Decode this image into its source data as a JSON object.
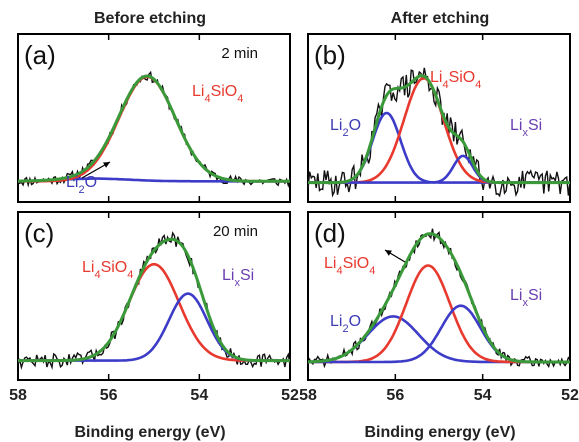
{
  "figure": {
    "col_titles": [
      "Before etching",
      "After etching"
    ]
  },
  "chart_data": [
    {
      "type": "line",
      "panel_label": "(a)",
      "annotation": "2 min",
      "xlabel": "Binding energy (eV)",
      "xlim": [
        58,
        52
      ],
      "x_ticks": [
        58,
        56,
        54,
        52
      ],
      "ylim": [
        0,
        1
      ],
      "peaks": [
        {
          "name": "Li2O",
          "label_main": "Li",
          "label_sub": "2",
          "label_rest": "O",
          "center": 56.3,
          "height": 0.02,
          "sigma": 0.75,
          "color": "#3c3cc8",
          "label_color": "#3c3cb4"
        },
        {
          "name": "Li4SiO4",
          "label_main": "Li",
          "label_sub": "4",
          "label_rest": "SiO",
          "label_sub2": "4",
          "center": 55.15,
          "height": 0.78,
          "sigma": 0.62,
          "color": "#e8392f",
          "label_color": "#e8392f"
        }
      ],
      "baseline": 0.05,
      "envelope_color": "#3a9a3a",
      "raw_color": "#111111",
      "noise": 0.035,
      "seed": 11
    },
    {
      "type": "line",
      "panel_label": "(b)",
      "annotation": "",
      "xlabel": "Binding energy (eV)",
      "xlim": [
        58,
        52
      ],
      "x_ticks": [
        58,
        56,
        54,
        52
      ],
      "ylim": [
        0,
        1
      ],
      "peaks": [
        {
          "name": "Li2O",
          "label_main": "Li",
          "label_sub": "2",
          "label_rest": "O",
          "center": 56.2,
          "height": 0.52,
          "sigma": 0.32,
          "color": "#3c3cc8",
          "label_color": "#3c3cb4"
        },
        {
          "name": "Li4SiO4",
          "label_main": "Li",
          "label_sub": "4",
          "label_rest": "SiO",
          "label_sub2": "4",
          "center": 55.35,
          "height": 0.78,
          "sigma": 0.45,
          "color": "#e8392f",
          "label_color": "#e8392f"
        },
        {
          "name": "LixSi",
          "label_main": "Li",
          "label_sub": "x",
          "label_rest": "Si",
          "center": 54.45,
          "height": 0.2,
          "sigma": 0.22,
          "color": "#3c3cc8",
          "label_color": "#6a3fb0"
        }
      ],
      "baseline": 0.04,
      "envelope_color": "#3a9a3a",
      "raw_color": "#111111",
      "noise": 0.1,
      "seed": 29
    },
    {
      "type": "line",
      "panel_label": "(c)",
      "annotation": "20 min",
      "xlabel": "Binding energy (eV)",
      "xlim": [
        58,
        52
      ],
      "x_ticks": [
        58,
        56,
        54,
        52
      ],
      "ylim": [
        0,
        1
      ],
      "peaks": [
        {
          "name": "Li4SiO4",
          "label_main": "Li",
          "label_sub": "4",
          "label_rest": "SiO",
          "label_sub2": "4",
          "center": 55.0,
          "height": 0.72,
          "sigma": 0.55,
          "color": "#e8392f",
          "label_color": "#e8392f"
        },
        {
          "name": "LixSi",
          "label_main": "Li",
          "label_sub": "x",
          "label_rest": "Si",
          "center": 54.25,
          "height": 0.5,
          "sigma": 0.42,
          "color": "#3c3cc8",
          "label_color": "#6a3fb0"
        }
      ],
      "baseline": 0.04,
      "envelope_color": "#3a9a3a",
      "raw_color": "#111111",
      "noise": 0.05,
      "seed": 47
    },
    {
      "type": "line",
      "panel_label": "(d)",
      "annotation": "",
      "xlabel": "Binding energy (eV)",
      "xlim": [
        58,
        52
      ],
      "x_ticks": [
        58,
        56,
        54,
        52
      ],
      "ylim": [
        0,
        1
      ],
      "peaks": [
        {
          "name": "Li2O",
          "label_main": "Li",
          "label_sub": "2",
          "label_rest": "O",
          "center": 56.05,
          "height": 0.34,
          "sigma": 0.58,
          "color": "#3c3cc8",
          "label_color": "#3c3cb4"
        },
        {
          "name": "Li4SiO4",
          "label_main": "Li",
          "label_sub": "4",
          "label_rest": "SiO",
          "label_sub2": "4",
          "center": 55.25,
          "height": 0.72,
          "sigma": 0.5,
          "color": "#e8392f",
          "label_color": "#e8392f"
        },
        {
          "name": "LixSi",
          "label_main": "Li",
          "label_sub": "x",
          "label_rest": "Si",
          "center": 54.5,
          "height": 0.42,
          "sigma": 0.45,
          "color": "#3c3cc8",
          "label_color": "#6a3fb0"
        }
      ],
      "baseline": 0.03,
      "envelope_color": "#3a9a3a",
      "raw_color": "#111111",
      "noise": 0.04,
      "seed": 71
    }
  ]
}
